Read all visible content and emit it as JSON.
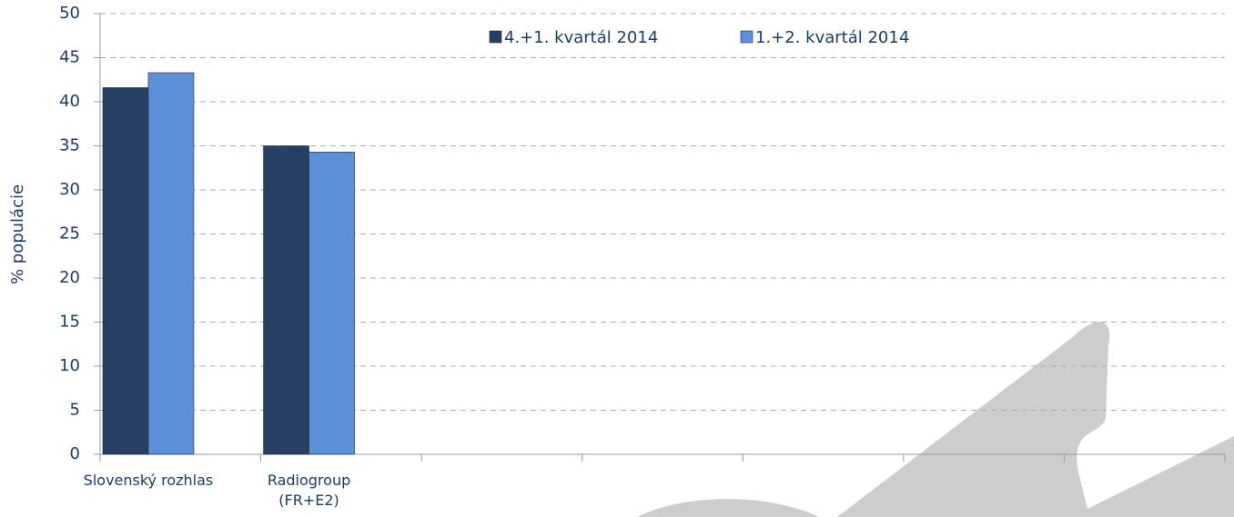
{
  "chart_data": {
    "type": "bar",
    "categories": [
      "Slovenský rozhlas",
      "Radiogroup\n(FR+E2)",
      null,
      null,
      null,
      null,
      null
    ],
    "series": [
      {
        "name": "4.+1. kvartál 2014",
        "color": "#263f63",
        "values": [
          41.6,
          35.0,
          null,
          null,
          null,
          null,
          null
        ]
      },
      {
        "name": "1.+2. kvartál 2014",
        "color": "#5b8fd6",
        "values": [
          43.3,
          34.3,
          null,
          null,
          null,
          null,
          null
        ]
      }
    ],
    "ylabel": "% populácie",
    "ylim": [
      0,
      50
    ],
    "yticks": [
      0,
      5,
      10,
      15,
      20,
      25,
      30,
      35,
      40,
      45,
      50
    ],
    "grid": true,
    "legend": "top"
  }
}
